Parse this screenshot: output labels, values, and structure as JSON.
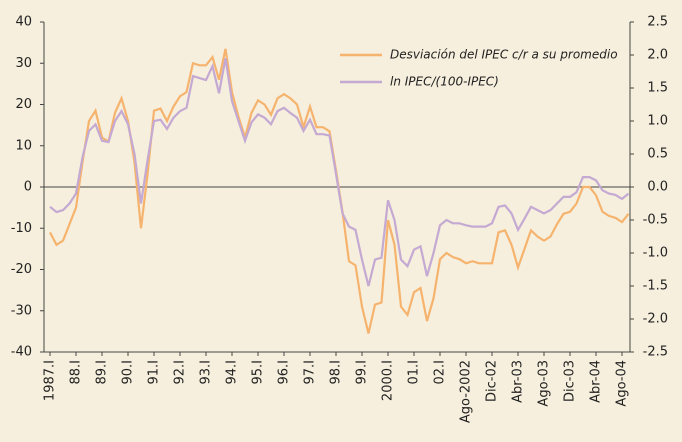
{
  "chart_data": {
    "type": "line",
    "categories": [
      "1987.I",
      null,
      null,
      null,
      "88.I",
      null,
      null,
      null,
      "89.I",
      null,
      null,
      null,
      "90.I",
      null,
      null,
      null,
      "91.I",
      null,
      null,
      null,
      "92.I",
      null,
      null,
      null,
      "93.I",
      null,
      null,
      null,
      "94.I",
      null,
      null,
      null,
      "95.I",
      null,
      null,
      null,
      "96.I",
      null,
      null,
      null,
      "97.I",
      null,
      null,
      null,
      "98.I",
      null,
      null,
      null,
      "99.I",
      null,
      null,
      null,
      "2000.I",
      null,
      null,
      null,
      "01.I",
      null,
      null,
      null,
      "02.I",
      null,
      null,
      null,
      "Ago-2002",
      null,
      null,
      null,
      "Dic-02",
      null,
      null,
      null,
      "Abr-03",
      null,
      null,
      null,
      "Ago-03",
      null,
      null,
      null,
      "Dic-03",
      null,
      null,
      null,
      "Abr-04",
      null,
      null,
      null,
      "Ago-04",
      null
    ],
    "series": [
      {
        "name": "Desviación del IPEC c/r a su promedio",
        "color": "#f5b36e",
        "values": [
          -11,
          -14,
          -13,
          -9,
          -5,
          6,
          16,
          18.5,
          12,
          11,
          18,
          21.5,
          16,
          6,
          -10,
          3,
          18.5,
          19,
          16,
          19.5,
          22,
          23,
          30,
          29.5,
          29.5,
          31.5,
          26,
          33.5,
          23,
          17,
          12,
          18,
          21,
          20,
          17.5,
          21.5,
          22.5,
          21.5,
          20,
          14.5,
          19.5,
          14.5,
          14.5,
          13.5,
          4,
          -6,
          -18,
          -19,
          -29,
          -35.5,
          -28.5,
          -28,
          -8,
          -14,
          -29,
          -31,
          -25.5,
          -24.5,
          -32.5,
          -27,
          -17.5,
          -16,
          -17,
          -17.5,
          -18.5,
          -18,
          -18.5,
          -18.5,
          -18.5,
          -11,
          -10.5,
          -14,
          -19.5,
          -15,
          -10.5,
          -12,
          -13,
          -12,
          -9,
          -6.5,
          -6,
          -4,
          0,
          0,
          -2,
          -6,
          -7,
          -7.5,
          -8.5,
          -6.5
        ]
      },
      {
        "name": "ln IPEC/(100-IPEC)",
        "color": "#c4a9d2",
        "axis": "y2",
        "values": [
          -0.3,
          -0.38,
          -0.35,
          -0.25,
          -0.1,
          0.45,
          0.85,
          0.95,
          0.7,
          0.68,
          1.0,
          1.15,
          0.95,
          0.5,
          -0.25,
          0.4,
          1.0,
          1.02,
          0.88,
          1.05,
          1.15,
          1.2,
          1.68,
          1.65,
          1.62,
          1.83,
          1.42,
          1.95,
          1.3,
          1.0,
          0.7,
          0.98,
          1.1,
          1.05,
          0.95,
          1.15,
          1.2,
          1.12,
          1.05,
          0.85,
          1.02,
          0.8,
          0.8,
          0.78,
          0.2,
          -0.4,
          -0.6,
          -0.65,
          -1.1,
          -1.5,
          -1.1,
          -1.07,
          -0.2,
          -0.5,
          -1.1,
          -1.2,
          -0.95,
          -0.9,
          -1.35,
          -1.0,
          -0.58,
          -0.5,
          -0.55,
          -0.55,
          -0.58,
          -0.6,
          -0.6,
          -0.6,
          -0.55,
          -0.3,
          -0.28,
          -0.4,
          -0.65,
          -0.48,
          -0.3,
          -0.35,
          -0.4,
          -0.35,
          -0.25,
          -0.15,
          -0.15,
          -0.08,
          0.15,
          0.15,
          0.1,
          -0.05,
          -0.1,
          -0.12,
          -0.18,
          -0.1
        ]
      }
    ],
    "ylim": [
      -40,
      40
    ],
    "yticks": [
      40,
      30,
      20,
      10,
      0,
      -10,
      -20,
      -30,
      -40
    ],
    "y2lim": [
      -2.5,
      2.5
    ],
    "y2ticks": [
      2.5,
      {
        "value": 2,
        "label": "2.0"
      },
      1.5,
      {
        "value": 1,
        "label": "1.0"
      },
      0.5,
      {
        "value": 0,
        "label": "0.0"
      },
      -0.5,
      {
        "value": -1,
        "label": "-1.0"
      },
      -1.5,
      {
        "value": -2,
        "label": "-2.0"
      },
      -2.5
    ],
    "grid": false
  }
}
